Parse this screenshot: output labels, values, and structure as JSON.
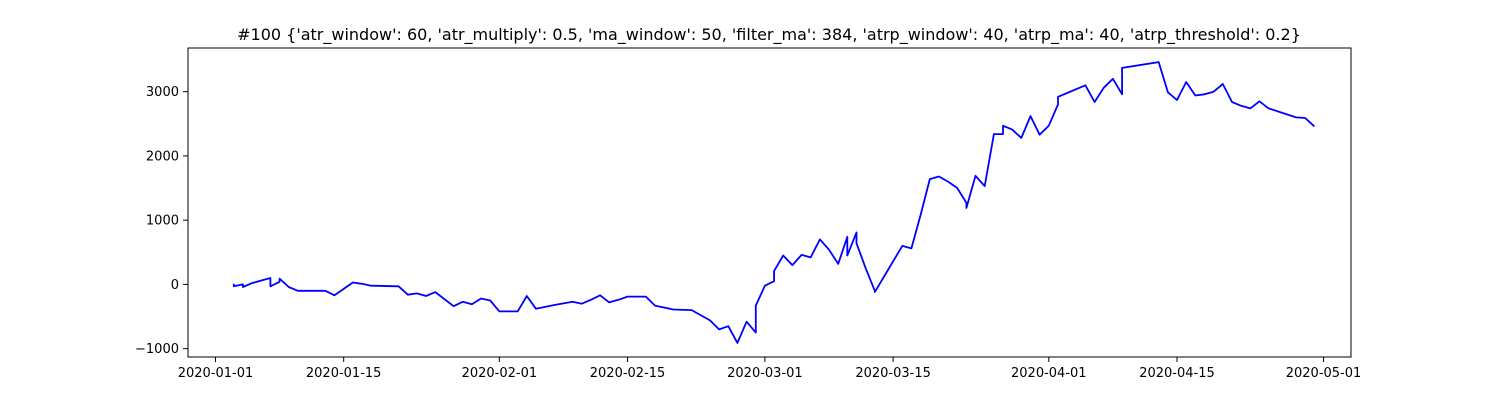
{
  "chart_data": {
    "type": "line",
    "title": "#100 {'atr_window': 60, 'atr_multiply': 0.5, 'ma_window': 50, 'filter_ma': 384, 'atrp_window': 40, 'atrp_ma': 40, 'atrp_threshold': 0.2}",
    "xlabel": "",
    "ylabel": "",
    "x_axis": "date",
    "xlim": [
      "2019-12-29",
      "2020-05-04"
    ],
    "ylim": [
      -1130,
      3680
    ],
    "grid": false,
    "line_color": "#0000ff",
    "x_ticks": [
      "2020-01-01",
      "2020-01-15",
      "2020-02-01",
      "2020-02-15",
      "2020-03-01",
      "2020-03-15",
      "2020-04-01",
      "2020-04-15",
      "2020-05-01"
    ],
    "y_ticks": [
      -1000,
      0,
      1000,
      2000,
      3000
    ],
    "x": [
      "2020-01-03",
      "2020-01-03",
      "2020-01-04",
      "2020-01-04",
      "2020-01-05",
      "2020-01-07",
      "2020-01-07",
      "2020-01-08",
      "2020-01-08",
      "2020-01-09",
      "2020-01-10",
      "2020-01-11",
      "2020-01-13",
      "2020-01-14",
      "2020-01-15",
      "2020-01-16",
      "2020-01-17",
      "2020-01-18",
      "2020-01-21",
      "2020-01-22",
      "2020-01-23",
      "2020-01-24",
      "2020-01-25",
      "2020-01-27",
      "2020-01-28",
      "2020-01-29",
      "2020-01-30",
      "2020-01-31",
      "2020-02-01",
      "2020-02-03",
      "2020-02-04",
      "2020-02-05",
      "2020-02-07",
      "2020-02-09",
      "2020-02-10",
      "2020-02-11",
      "2020-02-12",
      "2020-02-13",
      "2020-02-14",
      "2020-02-15",
      "2020-02-17",
      "2020-02-18",
      "2020-02-20",
      "2020-02-22",
      "2020-02-24",
      "2020-02-25",
      "2020-02-26",
      "2020-02-27",
      "2020-02-28",
      "2020-02-29",
      "2020-02-29",
      "2020-03-01",
      "2020-03-02",
      "2020-03-02",
      "2020-03-03",
      "2020-03-04",
      "2020-03-05",
      "2020-03-06",
      "2020-03-07",
      "2020-03-08",
      "2020-03-09",
      "2020-03-10",
      "2020-03-10",
      "2020-03-11",
      "2020-03-11",
      "2020-03-12",
      "2020-03-13",
      "2020-03-13",
      "2020-03-16",
      "2020-03-17",
      "2020-03-18",
      "2020-03-19",
      "2020-03-20",
      "2020-03-21",
      "2020-03-22",
      "2020-03-23",
      "2020-03-23",
      "2020-03-24",
      "2020-03-25",
      "2020-03-26",
      "2020-03-27",
      "2020-03-27",
      "2020-03-28",
      "2020-03-29",
      "2020-03-30",
      "2020-03-31",
      "2020-04-01",
      "2020-04-02",
      "2020-04-02",
      "2020-04-03",
      "2020-04-05",
      "2020-04-06",
      "2020-04-07",
      "2020-04-08",
      "2020-04-09",
      "2020-04-09",
      "2020-04-13",
      "2020-04-14",
      "2020-04-15",
      "2020-04-16",
      "2020-04-17",
      "2020-04-18",
      "2020-04-19",
      "2020-04-20",
      "2020-04-21",
      "2020-04-22",
      "2020-04-23",
      "2020-04-24",
      "2020-04-25",
      "2020-04-28",
      "2020-04-29",
      "2020-04-30"
    ],
    "values": [
      10,
      -30,
      0,
      -40,
      20,
      100,
      -30,
      40,
      90,
      -40,
      -100,
      -100,
      -100,
      -170,
      -70,
      30,
      10,
      -20,
      -30,
      -160,
      -140,
      -180,
      -120,
      -340,
      -270,
      -310,
      -220,
      -250,
      -420,
      -420,
      -180,
      -380,
      -320,
      -270,
      -300,
      -240,
      -170,
      -280,
      -240,
      -190,
      -190,
      -330,
      -390,
      -400,
      -560,
      -700,
      -650,
      -910,
      -580,
      -750,
      -330,
      -20,
      50,
      210,
      450,
      300,
      460,
      420,
      700,
      540,
      320,
      740,
      450,
      810,
      640,
      250,
      -100,
      -120,
      600,
      560,
      1080,
      1640,
      1680,
      1600,
      1500,
      1270,
      1190,
      1690,
      1530,
      2340,
      2340,
      2470,
      2410,
      2280,
      2620,
      2330,
      2470,
      2800,
      2920,
      2980,
      3100,
      2840,
      3060,
      3200,
      2960,
      3370,
      3460,
      2990,
      2870,
      3150,
      2940,
      2960,
      3000,
      3120,
      2840,
      2780,
      2740,
      2850,
      2740,
      2600,
      2590,
      2460
    ]
  }
}
